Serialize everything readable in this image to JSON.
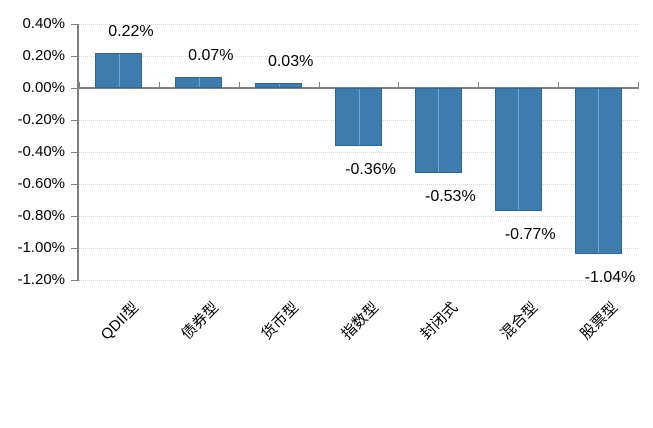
{
  "chart_data": {
    "type": "bar",
    "categories": [
      "QDII型",
      "债券型",
      "货币型",
      "指数型",
      "封闭式",
      "混合型",
      "股票型"
    ],
    "values": [
      0.22,
      0.07,
      0.03,
      -0.36,
      -0.53,
      -0.77,
      -1.04
    ],
    "data_labels": [
      "0.22%",
      "0.07%",
      "0.03%",
      "-0.36%",
      "-0.53%",
      "-0.77%",
      "-1.04%"
    ],
    "xlabel": "",
    "ylabel": "",
    "y_axis": {
      "min": -1.2,
      "max": 0.4,
      "step": 0.2,
      "tick_labels": [
        "0.40%",
        "0.20%",
        "0.00%",
        "-0.20%",
        "-0.40%",
        "-0.60%",
        "-0.80%",
        "-1.00%",
        "-1.20%"
      ]
    },
    "grid": true,
    "legend_position": "none",
    "colors": {
      "bar": "#3E7CAE",
      "bar_border": "#2F6592",
      "bar_highlight": "rgba(255,255,255,0.30)",
      "axis": "#7F7F7F",
      "gridline": "#D9D9D9",
      "text": "#000000"
    }
  }
}
